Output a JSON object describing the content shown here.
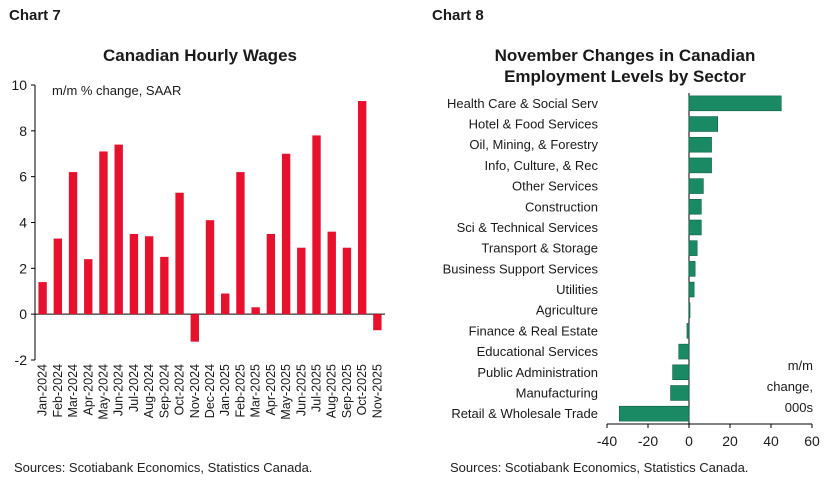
{
  "left_panel": {
    "label": "Chart 7",
    "source": "Sources: Scotiabank Economics, Statistics Canada."
  },
  "right_panel": {
    "label": "Chart 8",
    "source": "Sources: Scotiabank Economics, Statistics Canada."
  },
  "colors": {
    "wages_bar": "#e8112d",
    "sector_bar": "#1a8a65",
    "axis": "#000000"
  },
  "chart_data": [
    {
      "type": "bar",
      "title": "Canadian Hourly Wages",
      "annotation": "m/m % change, SAAR",
      "categories": [
        "Jan-2024",
        "Feb-2024",
        "Mar-2024",
        "Apr-2024",
        "May-2024",
        "Jun-2024",
        "Jul-2024",
        "Aug-2024",
        "Sep-2024",
        "Oct-2024",
        "Nov-2024",
        "Dec-2024",
        "Jan-2025",
        "Feb-2025",
        "Mar-2025",
        "Apr-2025",
        "May-2025",
        "Jun-2025",
        "Jul-2025",
        "Aug-2025",
        "Sep-2025",
        "Oct-2025",
        "Nov-2025"
      ],
      "values": [
        1.4,
        3.3,
        6.2,
        2.4,
        7.1,
        7.4,
        3.5,
        3.4,
        2.5,
        5.3,
        -1.2,
        4.1,
        0.9,
        6.2,
        0.3,
        3.5,
        7.0,
        2.9,
        7.8,
        3.6,
        2.9,
        9.3,
        -0.7
      ],
      "yticks": [
        "-2",
        "0",
        "2",
        "4",
        "6",
        "8",
        "10"
      ],
      "ylim": [
        -2,
        10
      ],
      "xlabel": "",
      "ylabel": "",
      "grid": false
    },
    {
      "type": "bar",
      "orientation": "horizontal",
      "title": "November Changes in Canadian Employment Levels by Sector",
      "annotation": [
        "m/m",
        "change,",
        "000s"
      ],
      "categories": [
        "Health Care & Social Serv",
        "Hotel & Food Services",
        "Oil, Mining, & Forestry",
        "Info, Culture, & Rec",
        "Other Services",
        "Construction",
        "Sci & Technical Services",
        "Transport & Storage",
        "Business Support Services",
        "Utilities",
        "Agriculture",
        "Finance & Real Estate",
        "Educational Services",
        "Public Administration",
        "Manufacturing",
        "Retail & Wholesale Trade"
      ],
      "values": [
        45,
        14,
        11,
        11,
        7,
        6,
        6,
        4,
        3,
        2.5,
        0.5,
        -1,
        -5,
        -8,
        -9,
        -34
      ],
      "xticks": [
        "-40",
        "-20",
        "0",
        "20",
        "40",
        "60"
      ],
      "xlim": [
        -40,
        60
      ],
      "xlabel": "",
      "ylabel": "",
      "grid": false
    }
  ]
}
